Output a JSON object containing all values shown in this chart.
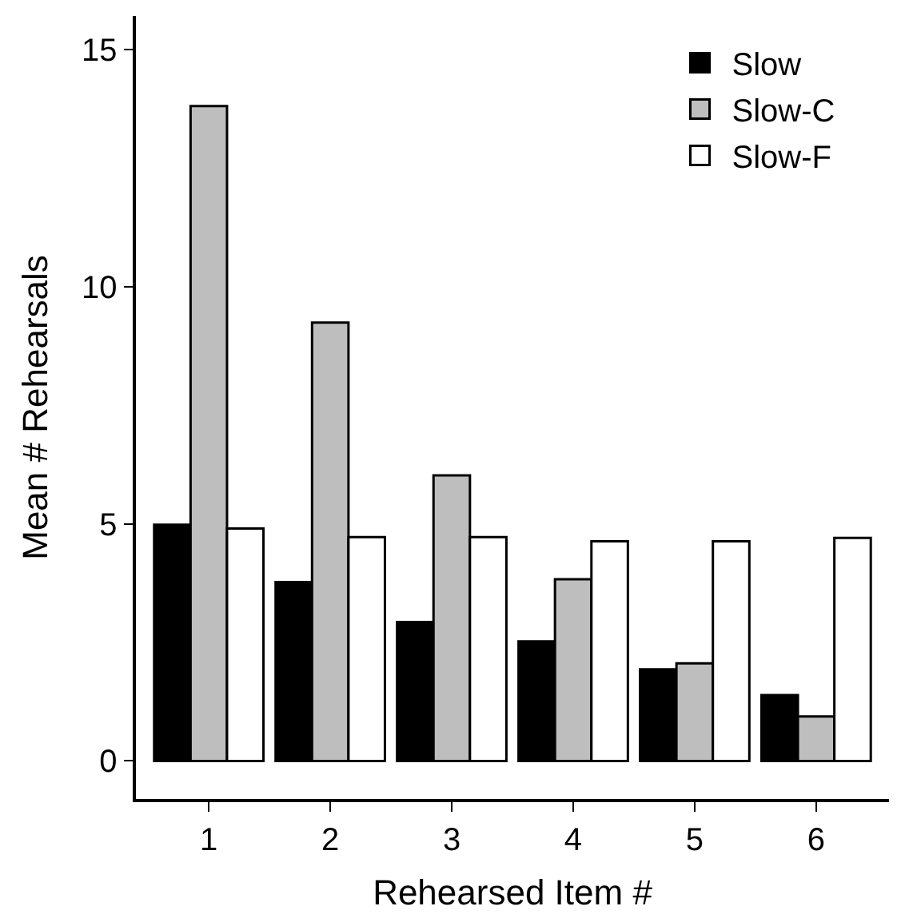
{
  "chart_data": {
    "type": "bar",
    "xlabel": "Rehearsed Item #",
    "ylabel": "Mean # Rehearsals",
    "categories": [
      "1",
      "2",
      "3",
      "4",
      "5",
      "6"
    ],
    "series": [
      {
        "name": "Slow",
        "color": "#000000",
        "values": [
          4.98,
          3.77,
          2.93,
          2.52,
          1.93,
          1.39
        ]
      },
      {
        "name": "Slow-C",
        "color": "#bebebe",
        "values": [
          13.8,
          9.24,
          6.02,
          3.83,
          2.06,
          0.94
        ]
      },
      {
        "name": "Slow-F",
        "color": "#ffffff",
        "values": [
          4.9,
          4.72,
          4.72,
          4.63,
          4.63,
          4.7
        ]
      }
    ],
    "ylim": [
      -0.8,
      15.7
    ],
    "yticks": [
      0,
      5,
      10,
      15
    ],
    "legend": "top right"
  }
}
